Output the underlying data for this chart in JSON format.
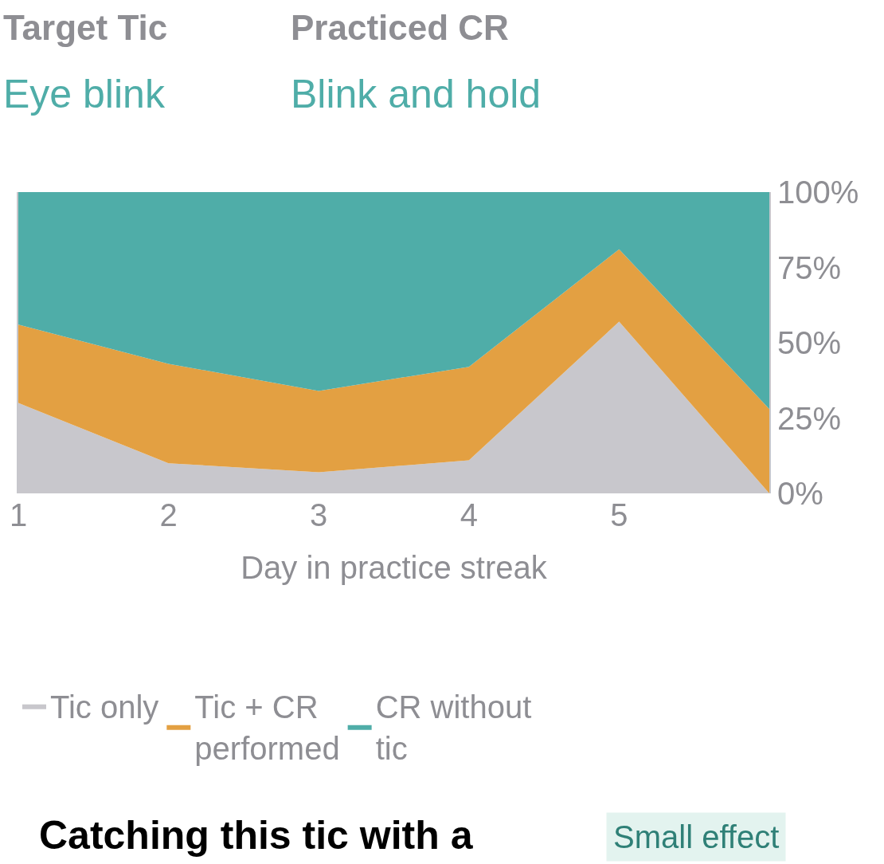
{
  "chart_data": {
    "type": "area",
    "stacked": true,
    "x": [
      1,
      2,
      3,
      4,
      5,
      6
    ],
    "xlim": [
      1,
      6
    ],
    "xticks": [
      1,
      2,
      3,
      4,
      5
    ],
    "ylim": [
      0,
      100
    ],
    "yticks": [
      {
        "value": 0,
        "label": "0%"
      },
      {
        "value": 25,
        "label": "25%"
      },
      {
        "value": 50,
        "label": "50%"
      },
      {
        "value": 75,
        "label": "75%"
      },
      {
        "value": 100,
        "label": "100%"
      }
    ],
    "xlabel": "Day in practice streak",
    "series": [
      {
        "name": "Tic only",
        "color": "#c8c7cc",
        "values": [
          30,
          10,
          7,
          11,
          57,
          0
        ]
      },
      {
        "name": "Tic + CR performed",
        "color": "#e3a042",
        "values": [
          26,
          33,
          27,
          31,
          24,
          28
        ]
      },
      {
        "name": "CR without tic",
        "color": "#4fada8",
        "values": [
          44,
          57,
          66,
          58,
          19,
          72
        ]
      }
    ],
    "legend": "bottom",
    "annotations": [
      "Target Tic",
      "Eye blink",
      "Practiced CR",
      "Blink and hold",
      "Catching this tic with a",
      "Small effect"
    ]
  }
}
